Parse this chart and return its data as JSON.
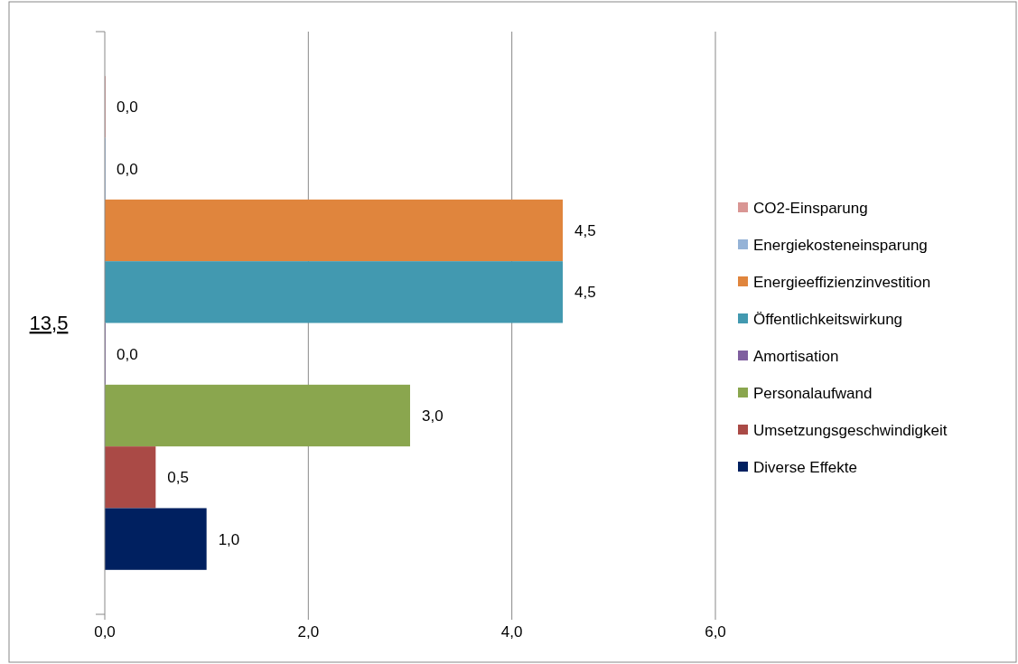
{
  "chart_data": {
    "type": "bar",
    "orientation": "horizontal",
    "categories": [
      "13,5"
    ],
    "series": [
      {
        "name": "CO2-Einsparung",
        "color": "#d99694",
        "values": [
          0
        ],
        "value_labels": [
          "0,0"
        ]
      },
      {
        "name": "Energiekosteneinsparung",
        "color": "#95b3d7",
        "values": [
          0
        ],
        "value_labels": [
          "0,0"
        ]
      },
      {
        "name": "Energieeffizienzinvestition",
        "color": "#e0853d",
        "values": [
          4.5
        ],
        "value_labels": [
          "4,5"
        ]
      },
      {
        "name": "Öffentlichkeitswirkung",
        "color": "#4299b0",
        "values": [
          4.5
        ],
        "value_labels": [
          "4,5"
        ]
      },
      {
        "name": "Amortisation",
        "color": "#7f5f9f",
        "values": [
          0
        ],
        "value_labels": [
          "0,0"
        ]
      },
      {
        "name": "Personalaufwand",
        "color": "#8aa64e",
        "values": [
          3
        ],
        "value_labels": [
          "3,0"
        ]
      },
      {
        "name": "Umsetzungsgeschwindigkeit",
        "color": "#aa4a46",
        "values": [
          0.5
        ],
        "value_labels": [
          "0,5"
        ]
      },
      {
        "name": "Diverse Effekte",
        "color": "#002060",
        "values": [
          1
        ],
        "value_labels": [
          "1,0"
        ]
      }
    ],
    "xlim": [
      0,
      6
    ],
    "xticks": [
      {
        "value": 0,
        "label": "0,0"
      },
      {
        "value": 2,
        "label": "2,0"
      },
      {
        "value": 4,
        "label": "4,0"
      },
      {
        "value": 6,
        "label": "6,0"
      }
    ],
    "grid": "x",
    "legend": "right"
  }
}
